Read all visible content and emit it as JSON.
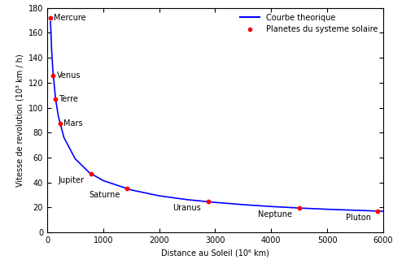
{
  "chart_data": {
    "type": "line",
    "x_label": "Distance au Soleil (10⁶ km)",
    "y_label": "Vitesse de revolution (10³ km / h)",
    "xlim": [
      0,
      6000
    ],
    "xticks": [
      0,
      1000,
      2000,
      3000,
      4000,
      5000,
      6000
    ],
    "ylim": [
      0,
      180
    ],
    "yticks": [
      0,
      20,
      40,
      60,
      80,
      100,
      120,
      140,
      160,
      180
    ],
    "legend": "upper right",
    "series": [
      {
        "name": "Courbe theorique",
        "type": "line",
        "color": "#0000ff",
        "line_style": "solid",
        "x": [
          60,
          80,
          100,
          150,
          200,
          300,
          500,
          750,
          1000,
          1500,
          2000,
          2500,
          3000,
          3500,
          4000,
          4500,
          5000,
          5500,
          6000
        ],
        "values": [
          169,
          146,
          131,
          107,
          93,
          76,
          59,
          48,
          41.5,
          34,
          29.3,
          26.2,
          24,
          22.2,
          20.7,
          19.5,
          18.5,
          17.7,
          16.9
        ]
      },
      {
        "name": "Planetes du systeme solaire",
        "type": "scatter",
        "color": "#ff0000",
        "marker": "o",
        "x": [
          58,
          108,
          150,
          228,
          778,
          1427,
          2871,
          4498,
          5906
        ],
        "values": [
          172,
          126,
          107,
          87,
          47,
          35,
          24.5,
          19.5,
          17
        ],
        "labels": [
          "Mercure",
          "Venus",
          "Terre",
          "Mars",
          "Jupiter",
          "Saturne",
          "Uranus",
          "Neptune",
          "Pluton"
        ]
      }
    ]
  }
}
